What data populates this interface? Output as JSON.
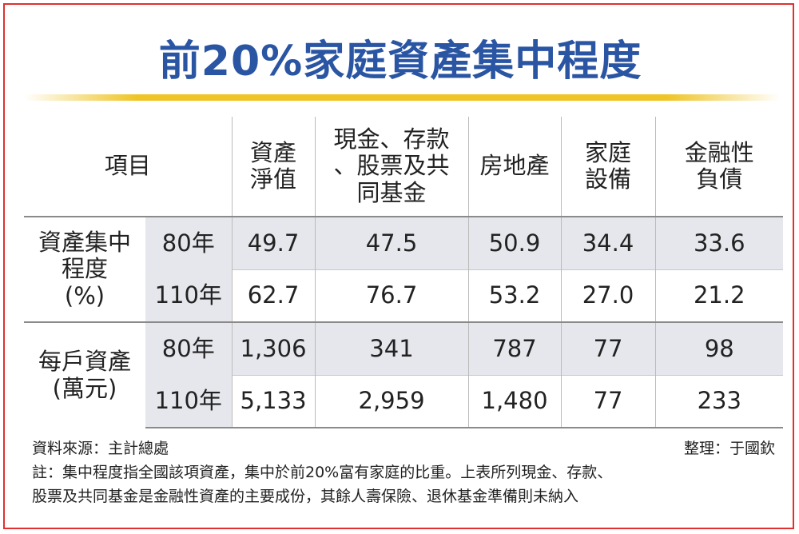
{
  "title": "前20%家庭資產集中程度",
  "table": {
    "item_header": "項目",
    "columns": [
      "資產\n淨值",
      "現金、存款\n、股票及共\n同基金",
      "房地產",
      "家庭\n設備",
      "金融性\n負債"
    ],
    "groups": [
      {
        "label": "資產集中\n程度\n(%)",
        "rows": [
          {
            "year": "80年",
            "values": [
              "49.7",
              "47.5",
              "50.9",
              "34.4",
              "33.6"
            ]
          },
          {
            "year": "110年",
            "values": [
              "62.7",
              "76.7",
              "53.2",
              "27.0",
              "21.2"
            ]
          }
        ]
      },
      {
        "label": "每戶資產\n(萬元)",
        "rows": [
          {
            "year": "80年",
            "values": [
              "1,306",
              "341",
              "787",
              "77",
              "98"
            ]
          },
          {
            "year": "110年",
            "values": [
              "5,133",
              "2,959",
              "1,480",
              "77",
              "233"
            ]
          }
        ]
      }
    ]
  },
  "notes": {
    "source": "資料來源：主計總處",
    "editor": "整理：于國欽",
    "note_line1": "註：集中程度指全國該項資產，集中於前20%富有家庭的比重。上表所列現金、存款、",
    "note_line2": "股票及共同基金是金融性資產的主要成份，其餘人壽保險、退休基金準備則未納入"
  }
}
